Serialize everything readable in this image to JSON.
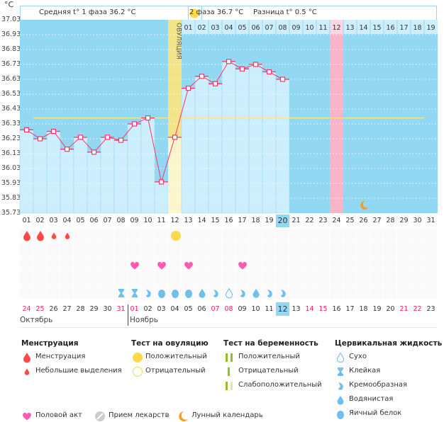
{
  "unit_label": "°C",
  "header": {
    "phase1": "Средняя t° 1 фаза 36.2 °C",
    "phase2": "2 фаза 36.7 °C",
    "diff": "Разница t° 0.5 °C",
    "ovulation_label": "ОВУЛЯЦИЯ"
  },
  "colors": {
    "background": "#93d8f2",
    "bar": "#cdeefc",
    "line": "#ff3366",
    "cover": "#f7e88c",
    "ovulation": "#f3e48a",
    "ovulation_low": "#fdf6cc",
    "highlight_pink": "#f9b4c8",
    "menstruation": "#ff4a4a",
    "heart": "#ff5ab4",
    "mucus": "#6fc0ec",
    "ov_test": "#ffd94a",
    "moon": "#ff9a1a"
  },
  "chart_data": {
    "type": "bar",
    "ylim": [
      35.73,
      37.03
    ],
    "yticks": [
      "37.03",
      "36.93",
      "36.83",
      "36.73",
      "36.63",
      "36.53",
      "36.43",
      "36.33",
      "36.23",
      "36.13",
      "36.03",
      "35.93",
      "35.83",
      "35.73"
    ],
    "cycle_days": [
      "01",
      "02",
      "03",
      "04",
      "05",
      "06",
      "07",
      "08",
      "09",
      "10",
      "11",
      "12",
      "13",
      "14",
      "15",
      "16",
      "17",
      "18",
      "19",
      "20",
      "21",
      "22",
      "23",
      "24",
      "25",
      "26",
      "27",
      "28",
      "29",
      "30",
      "31"
    ],
    "current_day": 20,
    "temperatures": [
      36.29,
      36.23,
      36.28,
      36.16,
      36.24,
      36.14,
      36.24,
      36.22,
      36.33,
      36.37,
      35.94,
      36.24,
      36.57,
      36.65,
      36.6,
      36.75,
      36.7,
      36.73,
      36.68,
      36.63
    ],
    "cover_line": 36.37,
    "ovulation_day": 12,
    "pink_day": 24,
    "moon_day": 26,
    "post_ovulation_labels": [
      "01",
      "02",
      "03",
      "04",
      "05",
      "06",
      "07",
      "08",
      "09",
      "10",
      "11",
      "12",
      "13",
      "14",
      "15",
      "16",
      "17",
      "18",
      "19"
    ],
    "post_ovulation_highlight": "12"
  },
  "dates": [
    {
      "d": "24",
      "red": true
    },
    {
      "d": "25",
      "red": true
    },
    {
      "d": "26"
    },
    {
      "d": "27"
    },
    {
      "d": "28"
    },
    {
      "d": "29"
    },
    {
      "d": "30"
    },
    {
      "d": "31",
      "red": true
    },
    {
      "d": "01",
      "red": true
    },
    {
      "d": "02"
    },
    {
      "d": "03"
    },
    {
      "d": "04"
    },
    {
      "d": "05"
    },
    {
      "d": "06"
    },
    {
      "d": "07",
      "red": true
    },
    {
      "d": "08",
      "red": true
    },
    {
      "d": "09"
    },
    {
      "d": "10"
    },
    {
      "d": "11"
    },
    {
      "d": "12",
      "today": true
    },
    {
      "d": "13"
    },
    {
      "d": "14",
      "red": true
    },
    {
      "d": "15",
      "red": true
    },
    {
      "d": "16"
    },
    {
      "d": "17"
    },
    {
      "d": "18"
    },
    {
      "d": "19"
    },
    {
      "d": "20"
    },
    {
      "d": "21",
      "red": true
    },
    {
      "d": "22",
      "red": true
    },
    {
      "d": "23"
    }
  ],
  "months": [
    {
      "label": "Октябрь"
    },
    {
      "label": "Ноябрь"
    }
  ],
  "markers": {
    "menstruation": {
      "1": "heavy",
      "2": "heavy",
      "3": "light",
      "4": "light"
    },
    "ovulation_test": {
      "12": "positive"
    },
    "sex": [
      9,
      11,
      13,
      17
    ],
    "mucus": {
      "8": "sticky",
      "9": "sticky",
      "10": "creamy",
      "11": "egg",
      "12": "egg",
      "13": "egg",
      "14": "watery",
      "15": "creamy",
      "16": "dry",
      "17": "creamy",
      "18": "watery",
      "19": "creamy",
      "20": "creamy"
    }
  },
  "legend": {
    "menstruation": {
      "title": "Менструация",
      "items": [
        "Менструация",
        "Небольшие выделения"
      ]
    },
    "ovulation_test": {
      "title": "Тест на овуляцию",
      "items": [
        "Положительный",
        "Отрицательный"
      ]
    },
    "pregnancy_test": {
      "title": "Тест на беременность",
      "items": [
        "Положительный",
        "Отрицательный",
        "Слабоположительный"
      ]
    },
    "mucus": {
      "title": "Цервикальная жидкость",
      "items": [
        "Сухо",
        "Клейкая",
        "Кремообразная",
        "Водянистая",
        "Яичный белок"
      ]
    },
    "bottom": [
      "Половой акт",
      "Прием лекарств",
      "Лунный календарь"
    ]
  }
}
